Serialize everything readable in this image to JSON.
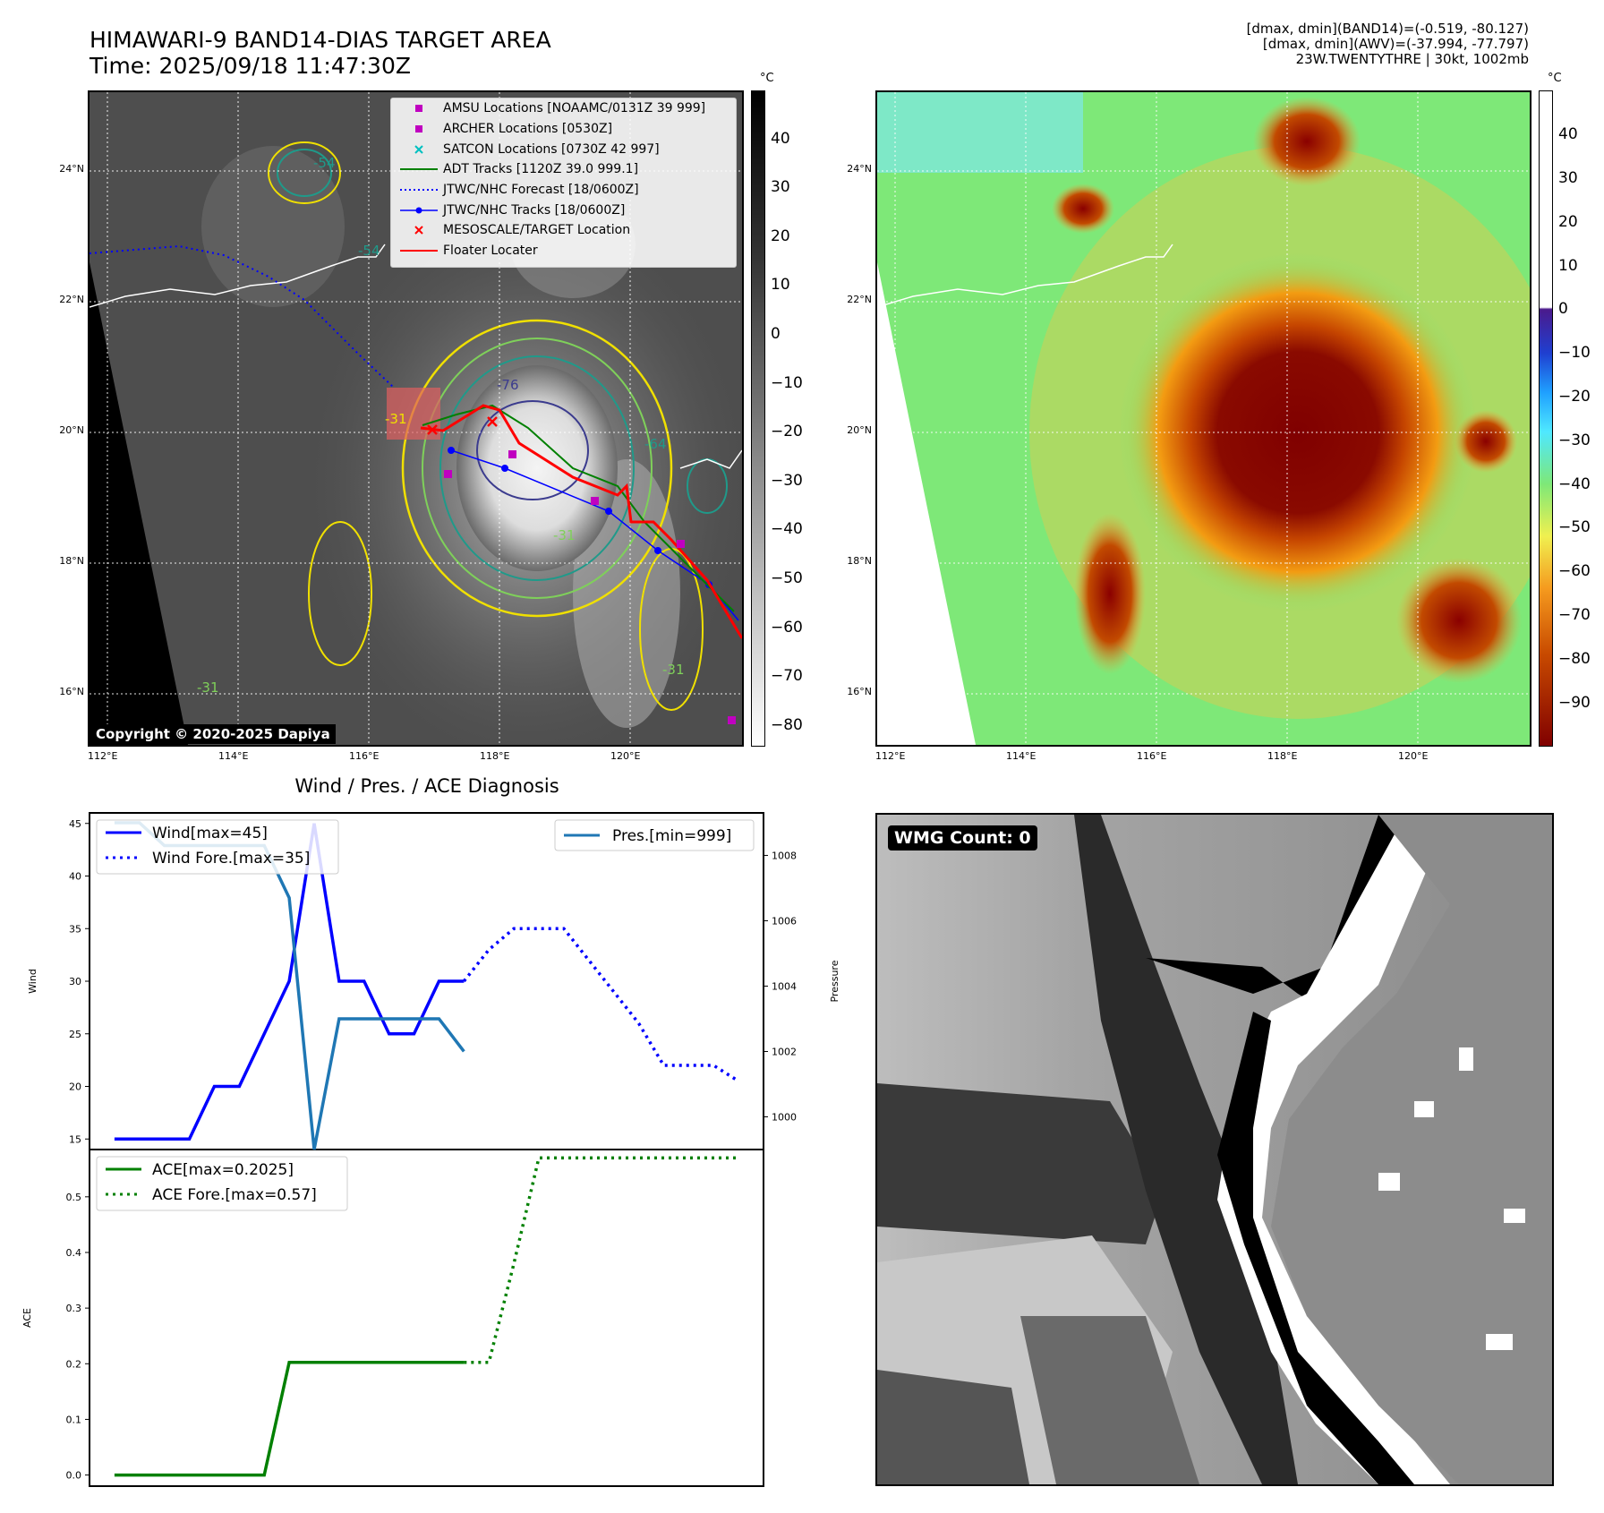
{
  "header": {
    "title_line1": "HIMAWARI-9 BAND14-DIAS TARGET AREA",
    "title_line2": "Time: 2025/09/18 11:47:30Z",
    "info_line1": "[dmax, dmin](BAND14)=(-0.519, -80.127)",
    "info_line2": "[dmax, dmin](AWV)=(-37.994, -77.797)",
    "info_line3": "23W.TWENTYTHRE | 30kt, 1002mb"
  },
  "map": {
    "lon_ticks": [
      "112°E",
      "114°E",
      "116°E",
      "118°E",
      "120°E"
    ],
    "lat_ticks": [
      "24°N",
      "22°N",
      "20°N",
      "18°N",
      "16°N"
    ],
    "copyright": "Copyright © 2020-2025 Dapiya",
    "contour_labels": [
      "-54",
      "-54",
      "-76",
      "-31",
      "-31",
      "-64",
      "-31",
      "-31"
    ],
    "legend": [
      {
        "label": "AMSU Locations [NOAAMC/0131Z 39 999]",
        "sym": "square",
        "color": "#c000c0"
      },
      {
        "label": "ARCHER Locations [0530Z]",
        "sym": "square",
        "color": "#c000c0"
      },
      {
        "label": "SATCON Locations [0730Z 42 997]",
        "sym": "x",
        "color": "#00c0c0"
      },
      {
        "label": "ADT Tracks [1120Z 39.0 999.1]",
        "sym": "line",
        "color": "#008000"
      },
      {
        "label": "JTWC/NHC Forecast [18/0600Z]",
        "sym": "dotted",
        "color": "#0000ff"
      },
      {
        "label": "JTWC/NHC Tracks [18/0600Z]",
        "sym": "linedot",
        "color": "#0000ff"
      },
      {
        "label": "MESOSCALE/TARGET Location",
        "sym": "x",
        "color": "#ff0000"
      },
      {
        "label": "Floater Locater",
        "sym": "line",
        "color": "#ff0000"
      }
    ]
  },
  "cbar_left": {
    "unit": "°C",
    "ticks": [
      "40",
      "30",
      "20",
      "10",
      "0",
      "−10",
      "−20",
      "−30",
      "−40",
      "−50",
      "−60",
      "−70",
      "−80"
    ]
  },
  "cbar_right": {
    "unit": "°C",
    "ticks": [
      "40",
      "30",
      "20",
      "10",
      "0",
      "−10",
      "−20",
      "−30",
      "−40",
      "−50",
      "−60",
      "−70",
      "−80",
      "−90"
    ]
  },
  "wmg": {
    "label": "WMG Count: 0"
  },
  "chart_data": [
    {
      "type": "line",
      "title": "Wind / Pres. / ACE Diagnosis",
      "ylabel": "Wind",
      "y2label": "Pressure",
      "ylim": [
        14,
        46
      ],
      "y2lim": [
        999,
        1009.3
      ],
      "yticks": [
        "15",
        "20",
        "25",
        "30",
        "35",
        "40",
        "45"
      ],
      "y2ticks": [
        "1000",
        "1002",
        "1004",
        "1006",
        "1008"
      ],
      "series": [
        {
          "name": "Wind[max=45]",
          "axis": "left",
          "color": "#0000ff",
          "style": "solid",
          "x": [
            0,
            1,
            2,
            3,
            4,
            5,
            6,
            7,
            8,
            9,
            10,
            11,
            12,
            13,
            14
          ],
          "values": [
            15,
            15,
            15,
            15,
            20,
            20,
            25,
            30,
            45,
            30,
            30,
            25,
            25,
            30,
            30
          ]
        },
        {
          "name": "Wind Fore.[max=35]",
          "axis": "left",
          "color": "#0000ff",
          "style": "dotted",
          "x": [
            14,
            15,
            16,
            17,
            18,
            19,
            20,
            21,
            22,
            23,
            24,
            25
          ],
          "values": [
            30,
            33,
            35,
            35,
            35,
            32,
            29,
            26,
            22,
            22,
            22,
            20.5
          ]
        },
        {
          "name": "Pres.[min=999]",
          "axis": "right",
          "color": "#1f77b4",
          "style": "solid",
          "x": [
            0,
            1,
            2,
            3,
            4,
            5,
            6,
            7,
            8,
            9,
            10,
            11,
            12,
            13,
            14
          ],
          "values": [
            1009,
            1009,
            1008.3,
            1008.3,
            1008.3,
            1008.3,
            1008.3,
            1006.7,
            999,
            1003,
            1003,
            1003,
            1003,
            1003,
            1002
          ]
        }
      ],
      "xlim": [
        -1,
        26
      ]
    },
    {
      "type": "line",
      "ylabel": "ACE",
      "ylim": [
        -0.02,
        0.585
      ],
      "yticks": [
        "0.0",
        "0.1",
        "0.2",
        "0.3",
        "0.4",
        "0.5"
      ],
      "series": [
        {
          "name": "ACE[max=0.2025]",
          "color": "#008000",
          "style": "solid",
          "x": [
            0,
            1,
            2,
            3,
            4,
            5,
            6,
            7,
            8,
            9,
            10,
            11,
            12,
            13,
            14
          ],
          "values": [
            0,
            0,
            0,
            0,
            0,
            0,
            0,
            0.2025,
            0.2025,
            0.2025,
            0.2025,
            0.2025,
            0.2025,
            0.2025,
            0.2025
          ]
        },
        {
          "name": "ACE Fore.[max=0.57]",
          "color": "#008000",
          "style": "dotted",
          "x": [
            14,
            15,
            16,
            17,
            18,
            19,
            20,
            21,
            22,
            23,
            24,
            25
          ],
          "values": [
            0.2025,
            0.2025,
            0.38,
            0.57,
            0.57,
            0.57,
            0.57,
            0.57,
            0.57,
            0.57,
            0.57,
            0.57
          ]
        }
      ],
      "xlim": [
        -1,
        26
      ]
    }
  ]
}
